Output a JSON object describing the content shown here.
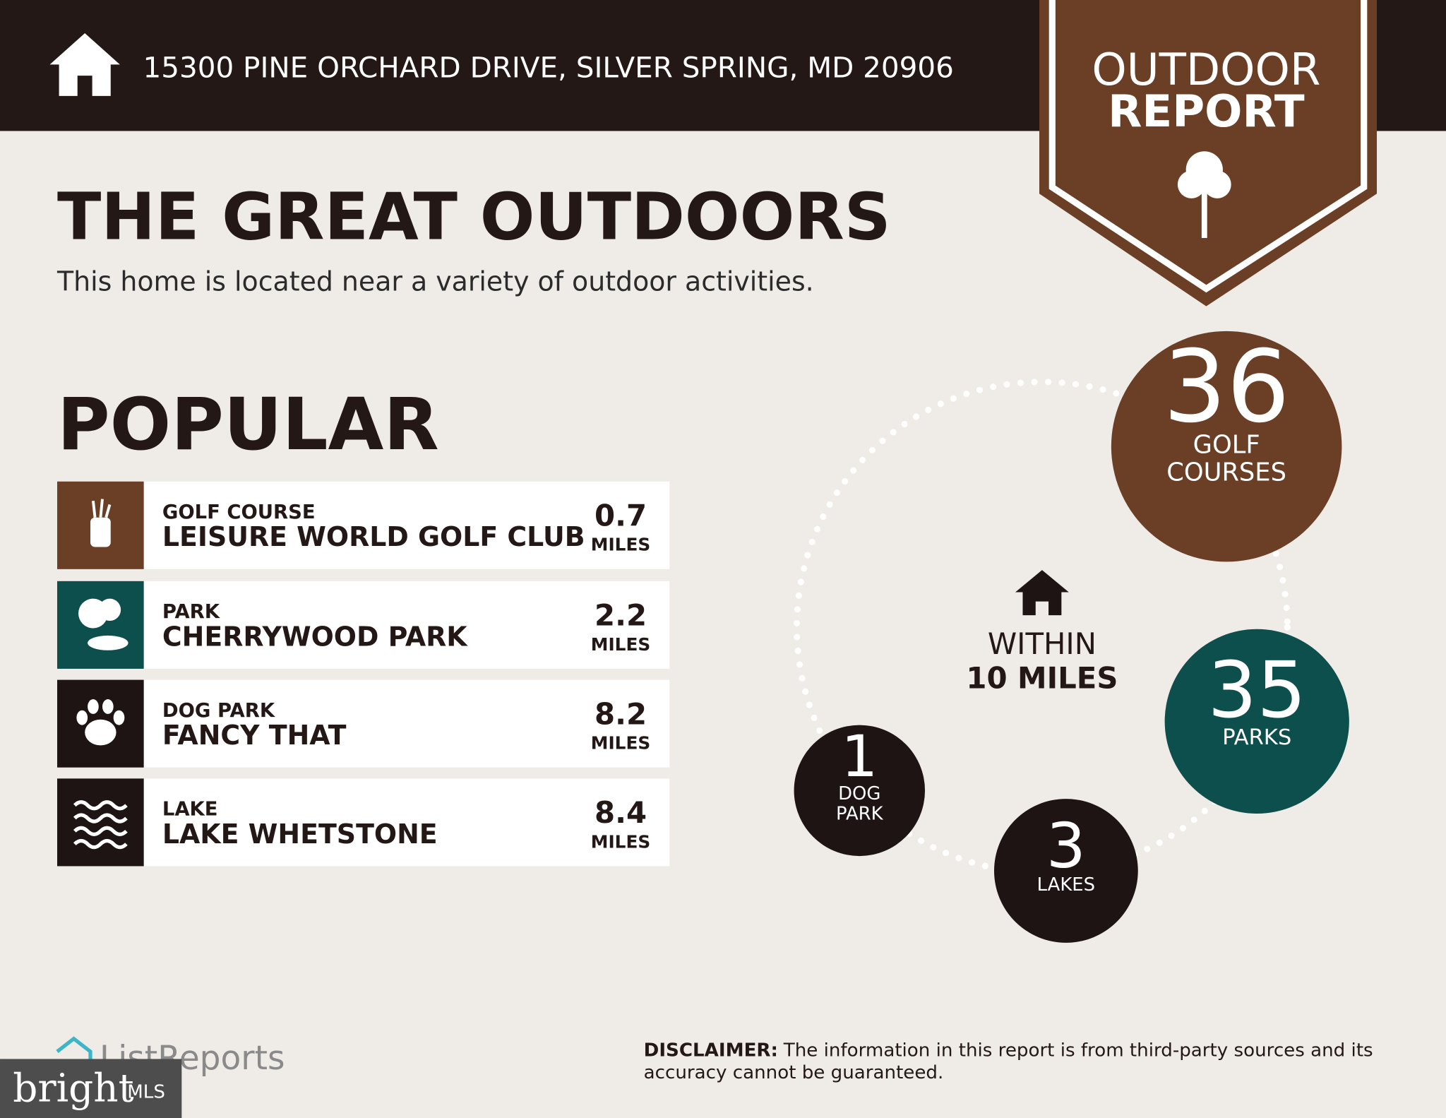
{
  "header": {
    "address": "15300 PINE ORCHARD DRIVE, SILVER SPRING, MD 20906"
  },
  "badge": {
    "line1": "OUTDOOR",
    "line2": "REPORT"
  },
  "title": "THE GREAT OUTDOORS",
  "subtitle": "This home is located near a variety of outdoor activities.",
  "popular": {
    "heading": "POPULAR",
    "unit": "MILES",
    "items": [
      {
        "category": "GOLF COURSE",
        "name": "LEISURE WORLD GOLF CLUB",
        "distance": 0.7
      },
      {
        "category": "PARK",
        "name": "CHERRYWOOD PARK",
        "distance": 2.2
      },
      {
        "category": "DOG PARK",
        "name": "FANCY THAT",
        "distance": 8.2
      },
      {
        "category": "LAKE",
        "name": "LAKE WHETSTONE",
        "distance": 8.4
      }
    ]
  },
  "summary": {
    "line1": "WITHIN",
    "line2": "10 MILES",
    "stats": [
      {
        "count": 36,
        "label": [
          "GOLF",
          "COURSES"
        ]
      },
      {
        "count": 35,
        "label": [
          "PARKS"
        ]
      },
      {
        "count": 3,
        "label": [
          "LAKES"
        ]
      },
      {
        "count": 1,
        "label": [
          "DOG",
          "PARK"
        ]
      }
    ]
  },
  "footer": {
    "logo": "ListReports",
    "mls_brand": "bright",
    "mls_suffix": "MLS",
    "disclaimer_label": "DISCLAIMER:",
    "disclaimer_lines": [
      "The information in this report is from third-party sources and its",
      "accuracy cannot be guaranteed."
    ]
  }
}
